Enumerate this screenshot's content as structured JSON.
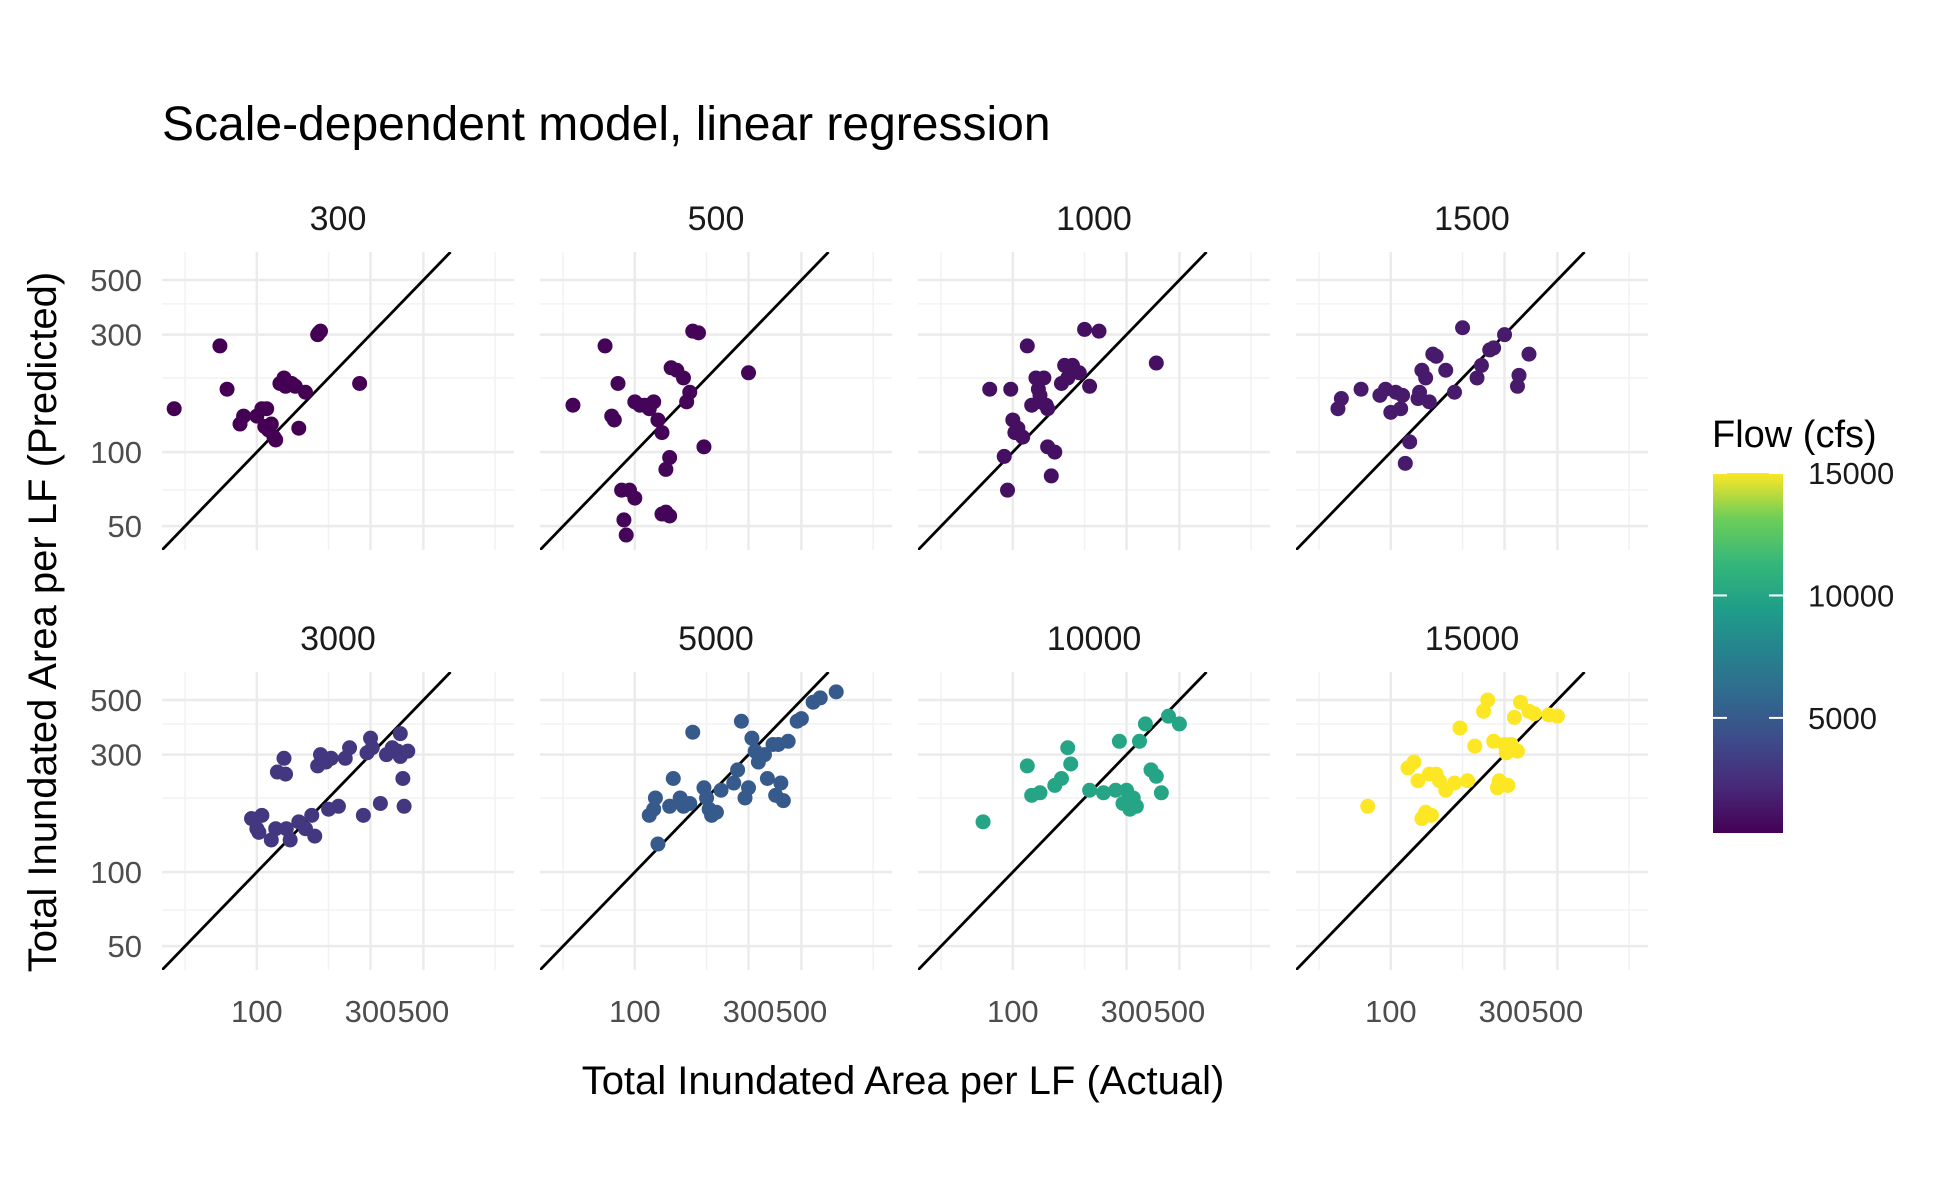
{
  "chart_data": {
    "type": "scatter",
    "title": "Scale-dependent model, linear regression",
    "xlabel": "Total Inundated Area per LF (Actual)",
    "ylabel": "Total Inundated Area per LF (Predicted)",
    "scale": "log10",
    "xlim": [
      40,
      1200
    ],
    "ylim": [
      40,
      650
    ],
    "x_ticks": [
      100,
      300,
      500
    ],
    "y_ticks": [
      50,
      100,
      300,
      500
    ],
    "reference_line": "y = x",
    "grid": true,
    "legend": {
      "title": "Flow (cfs)",
      "placement": "right",
      "type": "colorbar",
      "palette": "viridis",
      "range": [
        300,
        15000
      ],
      "ticks": [
        5000,
        10000,
        15000
      ]
    },
    "colors": {
      "line": "#000000",
      "grid": "#ebebeb",
      "text": "#1a1a1a",
      "axis_text": "#4d4d4d"
    },
    "panels": [
      {
        "label": "300",
        "flow": 300,
        "points": [
          [
            45,
            150
          ],
          [
            70,
            270
          ],
          [
            75,
            180
          ],
          [
            85,
            130
          ],
          [
            88,
            140
          ],
          [
            100,
            140
          ],
          [
            105,
            150
          ],
          [
            110,
            150
          ],
          [
            108,
            127
          ],
          [
            112,
            123
          ],
          [
            115,
            130
          ],
          [
            118,
            115
          ],
          [
            120,
            112
          ],
          [
            125,
            190
          ],
          [
            130,
            200
          ],
          [
            132,
            185
          ],
          [
            138,
            190
          ],
          [
            140,
            190
          ],
          [
            145,
            185
          ],
          [
            150,
            125
          ],
          [
            160,
            175
          ],
          [
            180,
            300
          ],
          [
            185,
            310
          ],
          [
            182,
            305
          ],
          [
            270,
            190
          ]
        ]
      },
      {
        "label": "500",
        "flow": 500,
        "points": [
          [
            55,
            155
          ],
          [
            75,
            270
          ],
          [
            80,
            140
          ],
          [
            82,
            135
          ],
          [
            85,
            190
          ],
          [
            88,
            70
          ],
          [
            90,
            53
          ],
          [
            92,
            46
          ],
          [
            95,
            70
          ],
          [
            100,
            65
          ],
          [
            100,
            160
          ],
          [
            105,
            155
          ],
          [
            110,
            155
          ],
          [
            115,
            150
          ],
          [
            120,
            160
          ],
          [
            125,
            135
          ],
          [
            130,
            120
          ],
          [
            130,
            56
          ],
          [
            135,
            57
          ],
          [
            140,
            55
          ],
          [
            140,
            95
          ],
          [
            135,
            85
          ],
          [
            142,
            220
          ],
          [
            150,
            215
          ],
          [
            160,
            200
          ],
          [
            165,
            160
          ],
          [
            170,
            175
          ],
          [
            175,
            310
          ],
          [
            185,
            305
          ],
          [
            195,
            105
          ],
          [
            300,
            210
          ]
        ]
      },
      {
        "label": "1000",
        "flow": 1000,
        "points": [
          [
            80,
            180
          ],
          [
            92,
            96
          ],
          [
            95,
            70
          ],
          [
            98,
            180
          ],
          [
            100,
            135
          ],
          [
            102,
            120
          ],
          [
            105,
            125
          ],
          [
            110,
            115
          ],
          [
            115,
            270
          ],
          [
            120,
            155
          ],
          [
            125,
            200
          ],
          [
            128,
            180
          ],
          [
            130,
            170
          ],
          [
            135,
            200
          ],
          [
            130,
            160
          ],
          [
            138,
            155
          ],
          [
            140,
            150
          ],
          [
            145,
            80
          ],
          [
            140,
            105
          ],
          [
            150,
            100
          ],
          [
            160,
            190
          ],
          [
            165,
            225
          ],
          [
            170,
            200
          ],
          [
            178,
            225
          ],
          [
            190,
            210
          ],
          [
            200,
            315
          ],
          [
            210,
            185
          ],
          [
            230,
            310
          ],
          [
            400,
            230
          ]
        ]
      },
      {
        "label": "1500",
        "flow": 1500,
        "points": [
          [
            60,
            150
          ],
          [
            62,
            165
          ],
          [
            75,
            180
          ],
          [
            90,
            170
          ],
          [
            95,
            180
          ],
          [
            100,
            145
          ],
          [
            105,
            175
          ],
          [
            110,
            150
          ],
          [
            112,
            170
          ],
          [
            115,
            90
          ],
          [
            120,
            110
          ],
          [
            130,
            165
          ],
          [
            132,
            175
          ],
          [
            135,
            215
          ],
          [
            140,
            200
          ],
          [
            145,
            160
          ],
          [
            150,
            250
          ],
          [
            155,
            245
          ],
          [
            170,
            215
          ],
          [
            185,
            175
          ],
          [
            200,
            320
          ],
          [
            230,
            200
          ],
          [
            240,
            225
          ],
          [
            260,
            260
          ],
          [
            270,
            265
          ],
          [
            300,
            300
          ],
          [
            340,
            185
          ],
          [
            345,
            205
          ],
          [
            380,
            250
          ]
        ]
      },
      {
        "label": "3000",
        "flow": 3000,
        "points": [
          [
            95,
            165
          ],
          [
            100,
            150
          ],
          [
            102,
            145
          ],
          [
            105,
            170
          ],
          [
            115,
            135
          ],
          [
            120,
            150
          ],
          [
            122,
            255
          ],
          [
            130,
            290
          ],
          [
            132,
            250
          ],
          [
            133,
            150
          ],
          [
            138,
            135
          ],
          [
            150,
            160
          ],
          [
            160,
            150
          ],
          [
            170,
            170
          ],
          [
            175,
            140
          ],
          [
            180,
            270
          ],
          [
            185,
            300
          ],
          [
            195,
            280
          ],
          [
            200,
            180
          ],
          [
            205,
            290
          ],
          [
            220,
            185
          ],
          [
            235,
            290
          ],
          [
            245,
            320
          ],
          [
            280,
            170
          ],
          [
            290,
            305
          ],
          [
            300,
            350
          ],
          [
            305,
            320
          ],
          [
            330,
            190
          ],
          [
            350,
            300
          ],
          [
            370,
            320
          ],
          [
            390,
            310
          ],
          [
            400,
            365
          ],
          [
            400,
            295
          ],
          [
            410,
            240
          ],
          [
            415,
            185
          ],
          [
            430,
            310
          ]
        ]
      },
      {
        "label": "5000",
        "flow": 5000,
        "points": [
          [
            115,
            170
          ],
          [
            120,
            180
          ],
          [
            122,
            200
          ],
          [
            125,
            130
          ],
          [
            140,
            185
          ],
          [
            145,
            240
          ],
          [
            155,
            200
          ],
          [
            160,
            185
          ],
          [
            170,
            190
          ],
          [
            175,
            370
          ],
          [
            195,
            220
          ],
          [
            200,
            200
          ],
          [
            205,
            180
          ],
          [
            210,
            170
          ],
          [
            220,
            175
          ],
          [
            230,
            215
          ],
          [
            260,
            230
          ],
          [
            270,
            260
          ],
          [
            280,
            410
          ],
          [
            290,
            200
          ],
          [
            300,
            220
          ],
          [
            310,
            350
          ],
          [
            320,
            310
          ],
          [
            330,
            280
          ],
          [
            350,
            300
          ],
          [
            360,
            240
          ],
          [
            380,
            330
          ],
          [
            390,
            205
          ],
          [
            400,
            330
          ],
          [
            410,
            230
          ],
          [
            420,
            195
          ],
          [
            440,
            340
          ],
          [
            480,
            410
          ],
          [
            500,
            420
          ],
          [
            560,
            490
          ],
          [
            600,
            510
          ],
          [
            700,
            540
          ]
        ]
      },
      {
        "label": "10000",
        "flow": 10000,
        "points": [
          [
            75,
            160
          ],
          [
            115,
            270
          ],
          [
            120,
            205
          ],
          [
            130,
            210
          ],
          [
            150,
            225
          ],
          [
            160,
            240
          ],
          [
            170,
            320
          ],
          [
            175,
            275
          ],
          [
            210,
            215
          ],
          [
            240,
            210
          ],
          [
            270,
            215
          ],
          [
            280,
            340
          ],
          [
            290,
            190
          ],
          [
            300,
            215
          ],
          [
            310,
            180
          ],
          [
            320,
            200
          ],
          [
            330,
            185
          ],
          [
            340,
            340
          ],
          [
            360,
            400
          ],
          [
            380,
            260
          ],
          [
            400,
            245
          ],
          [
            420,
            210
          ],
          [
            450,
            430
          ],
          [
            500,
            400
          ]
        ]
      },
      {
        "label": "15000",
        "flow": 15000,
        "points": [
          [
            80,
            185
          ],
          [
            118,
            265
          ],
          [
            125,
            280
          ],
          [
            130,
            235
          ],
          [
            135,
            165
          ],
          [
            140,
            175
          ],
          [
            145,
            250
          ],
          [
            148,
            170
          ],
          [
            155,
            250
          ],
          [
            160,
            235
          ],
          [
            170,
            215
          ],
          [
            185,
            230
          ],
          [
            195,
            385
          ],
          [
            210,
            235
          ],
          [
            225,
            325
          ],
          [
            245,
            450
          ],
          [
            255,
            500
          ],
          [
            270,
            340
          ],
          [
            280,
            220
          ],
          [
            285,
            235
          ],
          [
            300,
            330
          ],
          [
            305,
            305
          ],
          [
            310,
            225
          ],
          [
            320,
            330
          ],
          [
            330,
            425
          ],
          [
            340,
            310
          ],
          [
            350,
            490
          ],
          [
            380,
            450
          ],
          [
            400,
            440
          ],
          [
            460,
            435
          ],
          [
            500,
            430
          ]
        ]
      }
    ]
  }
}
